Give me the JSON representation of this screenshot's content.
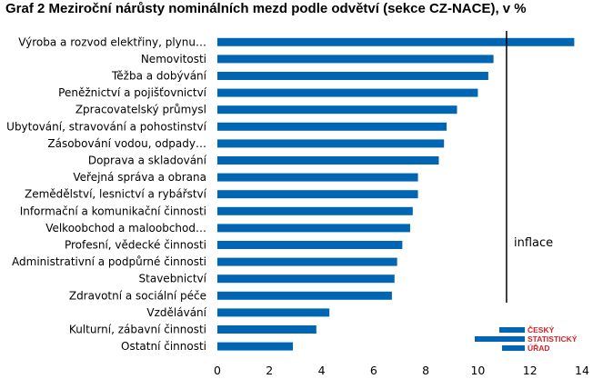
{
  "chart_data": {
    "type": "bar",
    "orientation": "horizontal",
    "title": "Graf 2  Meziroční nárůsty nominálních mezd podle odvětví (sekce CZ-NACE), v %",
    "categories": [
      "Výroba a rozvod elektřiny, plynu…",
      "Nemovitosti",
      "Těžba a dobývání",
      "Peněžnictví a pojišťovnictví",
      "Zpracovatelský průmysl",
      "Ubytování, stravování a pohostinství",
      "Zásobování vodou, odpady…",
      "Doprava a skladování",
      "Veřejná správa a obrana",
      "Zemědělství, lesnictví a rybářství",
      "Informační a komunikační činnosti",
      "Velkoobchod a maloobchod…",
      "Profesní, vědecké činnosti",
      "Administrativní a podpůrné činnosti",
      "Stavebnictví",
      "Zdravotní a sociální péče",
      "Vzdělávání",
      "Kulturní, zábavní činnosti",
      "Ostatní činnosti"
    ],
    "values": [
      13.7,
      10.6,
      10.4,
      10.0,
      9.2,
      8.8,
      8.7,
      8.5,
      7.7,
      7.7,
      7.5,
      7.4,
      7.1,
      6.9,
      6.8,
      6.7,
      4.3,
      3.8,
      2.9
    ],
    "xlim": [
      0,
      14
    ],
    "xticks": [
      0,
      2,
      4,
      6,
      8,
      10,
      12,
      14
    ],
    "xlabel": "",
    "ylabel": "",
    "grid": false,
    "bar_color": "#0066b3",
    "reference_line": {
      "label": "inflace",
      "value": 11.1,
      "color": "#000000"
    },
    "logo": {
      "lines": [
        "ČESKÝ",
        "STATISTICKÝ",
        "ÚŘAD"
      ],
      "text_color": "#d2232a",
      "mark_color": "#0066b3"
    }
  }
}
